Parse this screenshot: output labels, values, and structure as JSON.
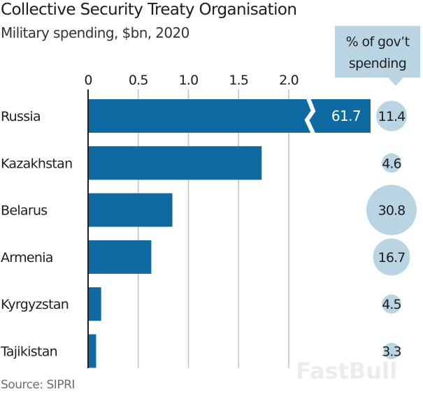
{
  "chart_data": {
    "type": "bar",
    "orientation": "horizontal",
    "title": "Collective Security Treaty Organisation",
    "subtitle": "Military spending, $bn, 2020",
    "xlabel": "",
    "ylabel": "",
    "xlim": [
      0,
      2.0
    ],
    "grid": true,
    "x_ticks": [
      "0",
      "0.5",
      "1.0",
      "1.5",
      "2.0"
    ],
    "x_tick_values": [
      0,
      0.5,
      1.0,
      1.5,
      2.0
    ],
    "categories": [
      "Russia",
      "Kazakhstan",
      "Belarus",
      "Armenia",
      "Kyrgyzstan",
      "Tajikistan"
    ],
    "series": [
      {
        "name": "Military spending, $bn",
        "values": [
          61.7,
          1.73,
          0.84,
          0.63,
          0.13,
          0.08
        ],
        "data_labels": [
          "61.7",
          null,
          null,
          null,
          null,
          null
        ],
        "broken_axis": [
          "Russia"
        ]
      },
      {
        "name": "% of gov't spending",
        "type": "bubble",
        "values": [
          11.4,
          4.6,
          30.8,
          16.7,
          4.5,
          3.3
        ],
        "data_labels": [
          "11.4",
          "4.6",
          "30.8",
          "16.7",
          "4.5",
          "3.3"
        ]
      }
    ],
    "callout": "% of gov’t spending",
    "callout_lines": [
      "% of gov’t",
      "spending"
    ],
    "source": "Source: SIPRI"
  },
  "colors": {
    "bar": "#0e6aa0",
    "bubble": "#b9d5e4",
    "callout_bg": "#b9d5e4",
    "grid": "#b8c9d5",
    "axis": "#1e1e1e"
  },
  "watermark": "FastBull"
}
